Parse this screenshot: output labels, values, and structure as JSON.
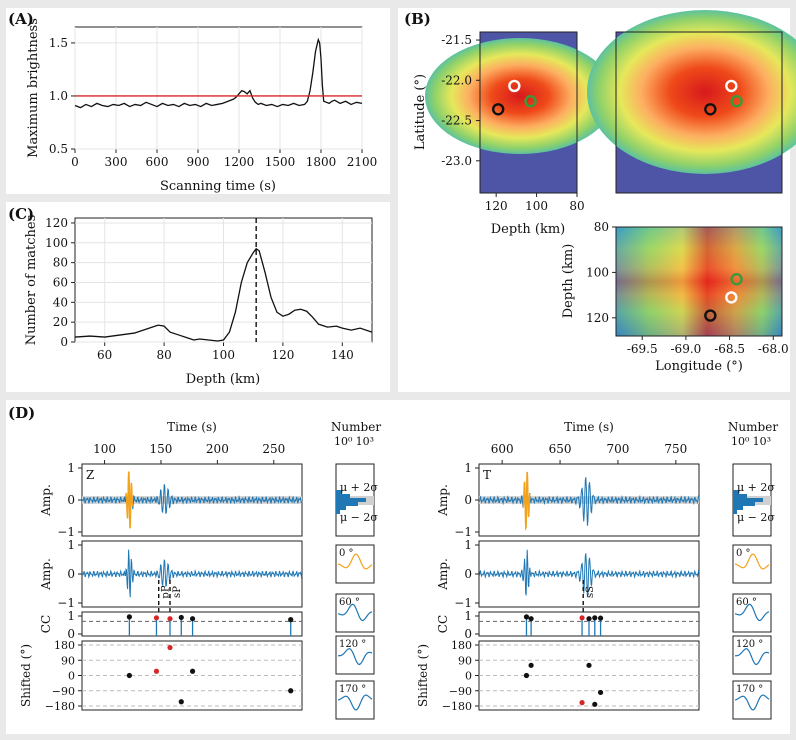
{
  "panels": {
    "A": {
      "label": "(A)",
      "chart_data": {
        "type": "line",
        "xlabel": "Scanning time (s)",
        "ylabel": "Maximum brightness",
        "xlim": [
          0,
          2100
        ],
        "ylim": [
          0.5,
          1.65
        ],
        "xticks": [
          "0",
          "300",
          "600",
          "900",
          "1200",
          "1500",
          "1800",
          "2100"
        ],
        "yticks": [
          "0.5",
          "1.0",
          "1.5"
        ],
        "threshold": 1.0,
        "series": [
          {
            "name": "brightness",
            "x": [
              0,
              40,
              80,
              120,
              160,
              200,
              240,
              280,
              320,
              360,
              400,
              440,
              480,
              520,
              560,
              600,
              640,
              680,
              720,
              760,
              800,
              840,
              880,
              920,
              960,
              1000,
              1040,
              1080,
              1120,
              1160,
              1180,
              1200,
              1220,
              1240,
              1260,
              1280,
              1300,
              1320,
              1340,
              1360,
              1400,
              1440,
              1480,
              1520,
              1560,
              1600,
              1640,
              1680,
              1700,
              1720,
              1740,
              1760,
              1780,
              1790,
              1800,
              1810,
              1820,
              1840,
              1860,
              1880,
              1900,
              1940,
              1980,
              2020,
              2060,
              2100
            ],
            "y": [
              0.91,
              0.89,
              0.92,
              0.9,
              0.93,
              0.91,
              0.9,
              0.92,
              0.91,
              0.93,
              0.9,
              0.92,
              0.91,
              0.94,
              0.92,
              0.9,
              0.93,
              0.91,
              0.92,
              0.9,
              0.93,
              0.91,
              0.92,
              0.9,
              0.93,
              0.91,
              0.92,
              0.93,
              0.95,
              0.97,
              0.99,
              1.02,
              1.05,
              1.04,
              1.02,
              1.05,
              0.98,
              0.94,
              0.92,
              0.93,
              0.91,
              0.92,
              0.9,
              0.92,
              0.91,
              0.93,
              0.91,
              0.92,
              0.95,
              1.05,
              1.22,
              1.42,
              1.53,
              1.5,
              1.35,
              1.1,
              0.95,
              0.94,
              0.93,
              0.95,
              0.96,
              0.93,
              0.95,
              0.92,
              0.94,
              0.93
            ]
          }
        ]
      }
    },
    "B": {
      "label": "(B)",
      "chart_data": {
        "type": "heatmap",
        "latitude_label": "Latitude (°)",
        "depth_label": "Depth (km)",
        "longitude_label": "Longitude (°)",
        "lat_ticks": [
          "-21.5",
          "-22.0",
          "-22.5",
          "-23.0"
        ],
        "lat_range": [
          -23.4,
          -21.4
        ],
        "depth_ticks_top": [
          "120",
          "100",
          "80"
        ],
        "depth_ticks_side": [
          "80",
          "100",
          "120"
        ],
        "depth_range": [
          80,
          128
        ],
        "lon_ticks": [
          "-69.5",
          "-69.0",
          "-68.5",
          "-68.0"
        ],
        "lon_range": [
          -69.8,
          -67.9
        ],
        "markers": [
          {
            "name": "white",
            "color": "#ffffff",
            "lon": -68.48,
            "lat": -22.07,
            "depth": 111
          },
          {
            "name": "green",
            "color": "#3a9a3a",
            "lon": -68.42,
            "lat": -22.26,
            "depth": 103
          },
          {
            "name": "black",
            "color": "#111111",
            "lon": -68.72,
            "lat": -22.36,
            "depth": 119
          }
        ]
      }
    },
    "C": {
      "label": "(C)",
      "chart_data": {
        "type": "line",
        "xlabel": "Depth (km)",
        "ylabel": "Number of matches",
        "xlim": [
          50,
          150
        ],
        "ylim": [
          0,
          125
        ],
        "xticks": [
          "60",
          "80",
          "100",
          "120",
          "140"
        ],
        "yticks": [
          "0",
          "20",
          "40",
          "60",
          "80",
          "100",
          "120"
        ],
        "vline": 111,
        "series": [
          {
            "name": "matches",
            "x": [
              50,
              55,
              60,
              65,
              70,
              75,
              78,
              80,
              82,
              85,
              88,
              90,
              92,
              95,
              98,
              100,
              102,
              104,
              106,
              108,
              110,
              111,
              112,
              114,
              116,
              118,
              120,
              122,
              124,
              126,
              128,
              130,
              132,
              135,
              138,
              140,
              143,
              146,
              150
            ],
            "y": [
              5,
              6,
              5,
              7,
              9,
              14,
              17,
              16,
              10,
              7,
              4,
              2,
              3,
              2,
              1,
              2,
              10,
              30,
              60,
              80,
              90,
              94,
              92,
              70,
              45,
              30,
              26,
              28,
              32,
              33,
              31,
              25,
              18,
              15,
              16,
              14,
              12,
              14,
              10
            ]
          }
        ]
      }
    },
    "D": {
      "label": "(D)",
      "left": {
        "component": "Z",
        "time_label": "Time (s)",
        "time_ticks": [
          "100",
          "150",
          "200",
          "250"
        ],
        "time_range": [
          80,
          275
        ],
        "num_label": "Number",
        "num_ticks": [
          "10⁰",
          "10³"
        ],
        "mu_plus": "μ + 2σ",
        "mu_minus": "μ − 2σ",
        "amp_label": "Amp.",
        "amp_ticks": [
          "1",
          "0",
          "−1"
        ],
        "cc_label": "CC",
        "cc_ticks": [
          "1",
          "0"
        ],
        "shift_label": "Shifted (°)",
        "shift_ticks": [
          "180",
          "90",
          "0",
          "−90",
          "−180"
        ],
        "phases": [
          {
            "name": "pP",
            "t": 148
          },
          {
            "name": "sP",
            "t": 158
          }
        ],
        "cc_points": [
          {
            "t": 122,
            "cc": 0.95,
            "color": "black"
          },
          {
            "t": 146,
            "cc": 0.9,
            "color": "red"
          },
          {
            "t": 158,
            "cc": 0.85,
            "color": "red"
          },
          {
            "t": 168,
            "cc": 0.92,
            "color": "black"
          },
          {
            "t": 178,
            "cc": 0.85,
            "color": "black"
          },
          {
            "t": 265,
            "cc": 0.8,
            "color": "black"
          }
        ],
        "shift_points": [
          {
            "t": 122,
            "deg": 0,
            "color": "black"
          },
          {
            "t": 146,
            "deg": 25,
            "color": "red"
          },
          {
            "t": 158,
            "deg": 165,
            "color": "red"
          },
          {
            "t": 168,
            "deg": -155,
            "color": "black"
          },
          {
            "t": 178,
            "deg": 25,
            "color": "black"
          },
          {
            "t": 265,
            "deg": -90,
            "color": "black"
          }
        ],
        "rotations": [
          "0 °",
          "60 °",
          "120 °",
          "170 °"
        ]
      },
      "right": {
        "component": "T",
        "time_label": "Time (s)",
        "time_ticks": [
          "600",
          "650",
          "700",
          "750"
        ],
        "time_range": [
          580,
          770
        ],
        "num_label": "Number",
        "num_ticks": [
          "10⁰",
          "10³"
        ],
        "mu_plus": "μ + 2σ",
        "mu_minus": "μ − 2σ",
        "amp_label": "Amp.",
        "amp_ticks": [
          "1",
          "0",
          "−1"
        ],
        "cc_label": "CC",
        "cc_ticks": [
          "1",
          "0"
        ],
        "shift_label": "Shifted (°)",
        "shift_ticks": [
          "180",
          "90",
          "0",
          "−90",
          "−180"
        ],
        "phases": [
          {
            "name": "sS",
            "t": 670
          }
        ],
        "cc_points": [
          {
            "t": 621,
            "cc": 0.95,
            "color": "black"
          },
          {
            "t": 625,
            "cc": 0.85,
            "color": "black"
          },
          {
            "t": 669,
            "cc": 0.9,
            "color": "red"
          },
          {
            "t": 675,
            "cc": 0.85,
            "color": "black"
          },
          {
            "t": 680,
            "cc": 0.9,
            "color": "black"
          },
          {
            "t": 685,
            "cc": 0.88,
            "color": "black"
          }
        ],
        "shift_points": [
          {
            "t": 621,
            "deg": 0,
            "color": "black"
          },
          {
            "t": 625,
            "deg": 60,
            "color": "black"
          },
          {
            "t": 669,
            "deg": -160,
            "color": "red"
          },
          {
            "t": 675,
            "deg": 60,
            "color": "black"
          },
          {
            "t": 680,
            "deg": -170,
            "color": "black"
          },
          {
            "t": 685,
            "deg": -100,
            "color": "black"
          }
        ],
        "rotations": [
          "0 °",
          "60 °",
          "120 °",
          "170 °"
        ]
      }
    }
  }
}
